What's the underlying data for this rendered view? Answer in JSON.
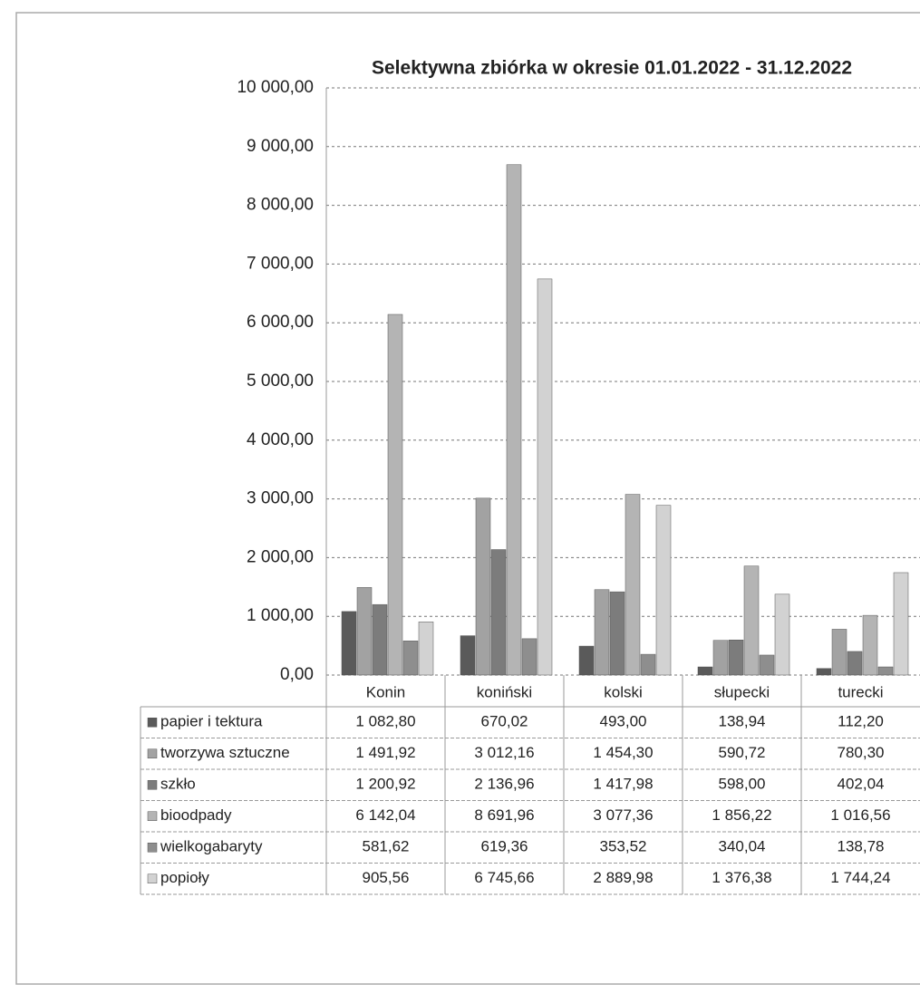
{
  "chart_data": {
    "type": "bar",
    "title": "Selektywna zbiórka w okresie 01.01.2022 - 31.12.2022",
    "categories": [
      "Konin",
      "koniński",
      "kolski",
      "słupecki",
      "turecki"
    ],
    "series": [
      {
        "name": "papier i tektura",
        "color": "#5a5a5a",
        "values": [
          1082.8,
          670.02,
          493.0,
          138.94,
          112.2
        ],
        "value_labels": [
          "1 082,80",
          "670,02",
          "493,00",
          "138,94",
          "112,20"
        ]
      },
      {
        "name": "tworzywa sztuczne",
        "color": "#a2a2a2",
        "values": [
          1491.92,
          3012.16,
          1454.3,
          590.72,
          780.3
        ],
        "value_labels": [
          "1 491,92",
          "3 012,16",
          "1 454,30",
          "590,72",
          "780,30"
        ]
      },
      {
        "name": "szkło",
        "color": "#7c7c7c",
        "values": [
          1200.92,
          2136.96,
          1417.98,
          598.0,
          402.04
        ],
        "value_labels": [
          "1 200,92",
          "2 136,96",
          "1 417,98",
          "598,00",
          "402,04"
        ]
      },
      {
        "name": "bioodpady",
        "color": "#b4b4b4",
        "values": [
          6142.04,
          8691.96,
          3077.36,
          1856.22,
          1016.56
        ],
        "value_labels": [
          "6 142,04",
          "8 691,96",
          "3 077,36",
          "1 856,22",
          "1 016,56"
        ]
      },
      {
        "name": "wielkogabaryty",
        "color": "#8e8e8e",
        "values": [
          581.62,
          619.36,
          353.52,
          340.04,
          138.78
        ],
        "value_labels": [
          "581,62",
          "619,36",
          "353,52",
          "340,04",
          "138,78"
        ]
      },
      {
        "name": "popioły",
        "color": "#d2d2d2",
        "values": [
          905.56,
          6745.66,
          2889.98,
          1376.38,
          1744.24
        ],
        "value_labels": [
          "905,56",
          "6 745,66",
          "2 889,98",
          "1 376,38",
          "1 744,24"
        ]
      }
    ],
    "ylim": [
      0,
      10000
    ],
    "yticks": [
      {
        "value": 0,
        "label": "0,00"
      },
      {
        "value": 1000,
        "label": "1 000,00"
      },
      {
        "value": 2000,
        "label": "2 000,00"
      },
      {
        "value": 3000,
        "label": "3 000,00"
      },
      {
        "value": 4000,
        "label": "4 000,00"
      },
      {
        "value": 5000,
        "label": "5 000,00"
      },
      {
        "value": 6000,
        "label": "6 000,00"
      },
      {
        "value": 7000,
        "label": "7 000,00"
      },
      {
        "value": 8000,
        "label": "8 000,00"
      },
      {
        "value": 9000,
        "label": "9 000,00"
      },
      {
        "value": 10000,
        "label": "10 000,00"
      }
    ],
    "grid": true
  }
}
